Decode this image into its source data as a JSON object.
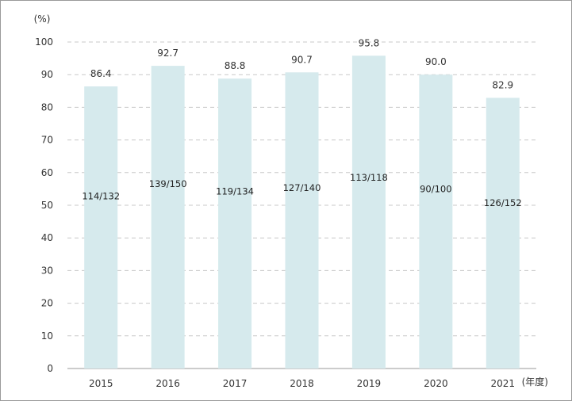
{
  "chart_data": {
    "type": "bar",
    "ylabel": "(%)",
    "xlabel": "(年度)",
    "ylim": [
      0,
      100
    ],
    "yticks": [
      0,
      10,
      20,
      30,
      40,
      50,
      60,
      70,
      80,
      90,
      100
    ],
    "grid": true,
    "categories": [
      "2015",
      "2016",
      "2017",
      "2018",
      "2019",
      "2020",
      "2021"
    ],
    "values": [
      86.4,
      92.7,
      88.8,
      90.7,
      95.8,
      90.0,
      82.9
    ],
    "value_labels": [
      "86.4",
      "92.7",
      "88.8",
      "90.7",
      "95.8",
      "90.0",
      "82.9"
    ],
    "inner_labels": [
      "114/132",
      "139/150",
      "119/134",
      "127/140",
      "113/118",
      "90/100",
      "126/152"
    ],
    "colors": {
      "bar": "#d6eaed",
      "grid": "#c8c8c8",
      "axis": "#999999"
    }
  }
}
